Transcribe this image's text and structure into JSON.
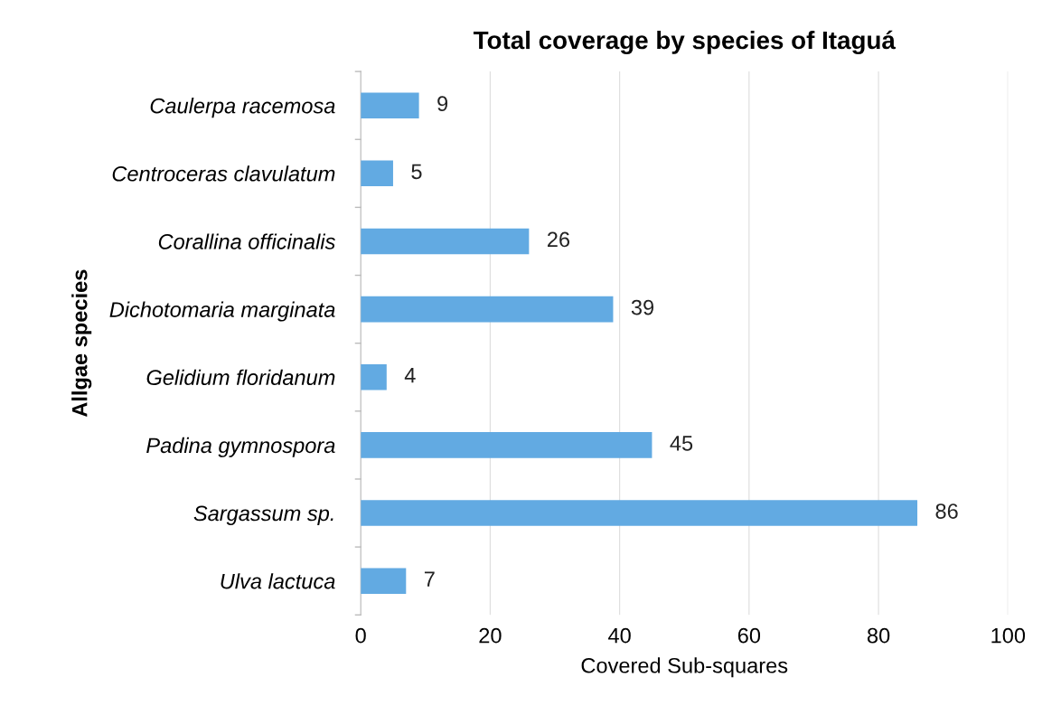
{
  "chart_data": {
    "type": "bar",
    "orientation": "horizontal",
    "title": "Total coverage by species of Itaguá",
    "xlabel": "Covered Sub-squares",
    "ylabel": "Allgae species",
    "categories": [
      "Caulerpa racemosa",
      "Centroceras clavulatum",
      "Corallina officinalis",
      "Dichotomaria marginata",
      "Gelidium floridanum",
      "Padina gymnospora",
      "Sargassum sp.",
      "Ulva lactuca"
    ],
    "values": [
      9,
      5,
      26,
      39,
      4,
      45,
      86,
      7
    ],
    "color": "#62aae2",
    "xlim": [
      0,
      100
    ],
    "xticks": [
      0,
      20,
      40,
      60,
      80,
      100
    ],
    "grid": "x",
    "data_labels": true
  }
}
